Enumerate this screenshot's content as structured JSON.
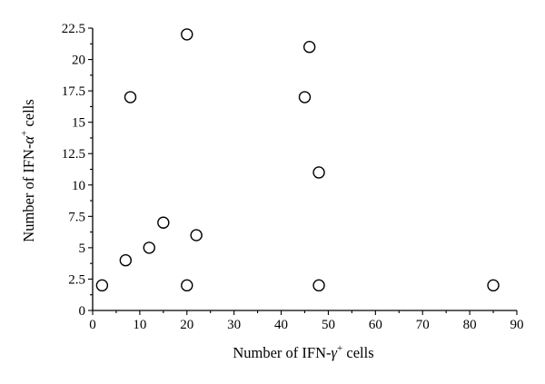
{
  "chart_data": {
    "type": "scatter",
    "title": "",
    "xlabel": "Number of IFN-γ+ cells",
    "ylabel": "Number of IFN-α+ cells",
    "xlabel_parts": {
      "prefix": "Number of IFN-",
      "symbol": "γ",
      "sup": "+",
      "suffix": " cells"
    },
    "ylabel_parts": {
      "prefix": "Number of IFN-",
      "symbol": "α",
      "sup": "+",
      "suffix": " cells"
    },
    "xlim": [
      0,
      90
    ],
    "ylim": [
      0,
      22.5
    ],
    "x_ticks": [
      "0",
      "10",
      "20",
      "30",
      "40",
      "50",
      "60",
      "70",
      "80",
      "90"
    ],
    "y_ticks": [
      "0",
      "2.5",
      "5",
      "7.5",
      "10",
      "12.5",
      "15",
      "17.5",
      "20",
      "22.5"
    ],
    "grid": false,
    "marker": "open-circle",
    "points": [
      {
        "x": 2,
        "y": 2
      },
      {
        "x": 7,
        "y": 4
      },
      {
        "x": 8,
        "y": 17
      },
      {
        "x": 12,
        "y": 5
      },
      {
        "x": 15,
        "y": 7
      },
      {
        "x": 20,
        "y": 22
      },
      {
        "x": 20,
        "y": 2
      },
      {
        "x": 22,
        "y": 6
      },
      {
        "x": 45,
        "y": 17
      },
      {
        "x": 46,
        "y": 21
      },
      {
        "x": 48,
        "y": 11
      },
      {
        "x": 48,
        "y": 2
      },
      {
        "x": 85,
        "y": 2
      }
    ]
  }
}
